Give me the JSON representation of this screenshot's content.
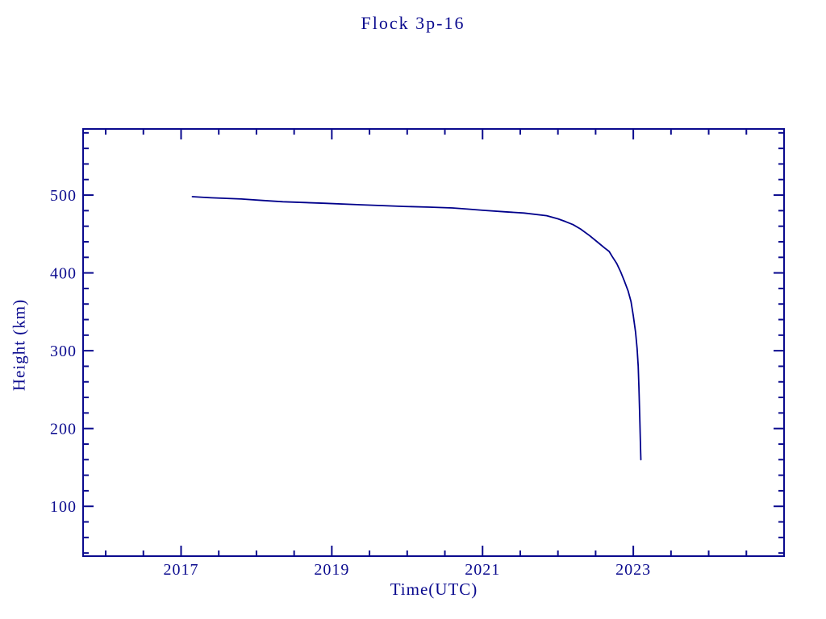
{
  "chart_data": {
    "type": "line",
    "title": "Flock 3p-16",
    "xlabel": "Time(UTC)",
    "ylabel": "Height (km)",
    "xlim": [
      2015.7,
      2025.0
    ],
    "ylim": [
      36,
      585
    ],
    "x_major_ticks": [
      2017,
      2019,
      2021,
      2023
    ],
    "x_tick_labels": [
      "2017",
      "2019",
      "2021",
      "2023"
    ],
    "x_minor_step": 0.5,
    "y_major_ticks": [
      100,
      200,
      300,
      400,
      500
    ],
    "y_tick_labels": [
      "100",
      "200",
      "300",
      "400",
      "500"
    ],
    "y_minor_step": 20,
    "grid": false,
    "legend": "none",
    "frame": "box-with-mirrored-inward-ticks",
    "colors": {
      "line": "#00008B",
      "axis": "#0a0a8e",
      "text": "#0a0a8e",
      "background": "#ffffff"
    },
    "series": [
      {
        "name": "orbital-height",
        "x": [
          2017.15,
          2017.4,
          2017.8,
          2018.1,
          2018.35,
          2018.9,
          2019.4,
          2019.95,
          2020.3,
          2020.6,
          2020.8,
          2021.0,
          2021.3,
          2021.55,
          2021.85,
          2022.0,
          2022.1,
          2022.2,
          2022.3,
          2022.42,
          2022.52,
          2022.62,
          2022.68,
          2022.72,
          2022.78,
          2022.83,
          2022.88,
          2022.93,
          2022.97,
          2023.0,
          2023.03,
          2023.05,
          2023.065,
          2023.075,
          2023.085,
          2023.095,
          2023.1
        ],
        "y": [
          498,
          496.5,
          495,
          493,
          491.5,
          489.5,
          487.5,
          485.5,
          484.5,
          483.5,
          482,
          480.5,
          478.5,
          477,
          473.5,
          469.5,
          466,
          462,
          456.5,
          448,
          440,
          432,
          427.5,
          421,
          412,
          402,
          390,
          377,
          363,
          345,
          324,
          303,
          280,
          252,
          215,
          178,
          160
        ]
      }
    ]
  }
}
